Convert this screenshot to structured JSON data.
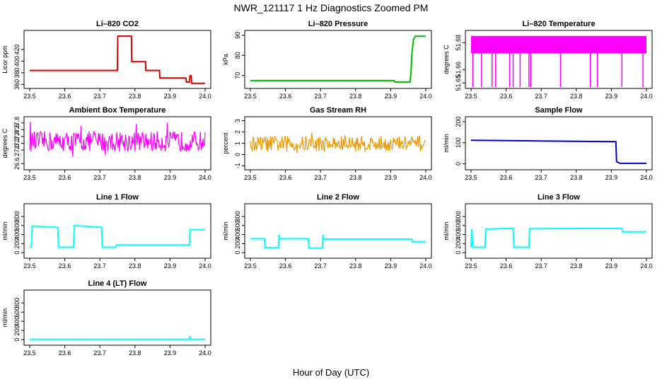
{
  "figure": {
    "title": "NWR_121117  1 Hz Diagnostics Zoomed PM",
    "xlabel": "Hour of Day (UTC)"
  },
  "chart_data": [
    {
      "type": "line",
      "title": "Li–820 CO2",
      "ylabel": "Licor ppm",
      "color": "#dd0000",
      "xlim": [
        23.5,
        24.0
      ],
      "ylim": [
        358,
        448
      ],
      "xticks": [
        "23.5",
        "23.6",
        "23.7",
        "23.8",
        "23.9",
        "24.0"
      ],
      "yticks": [
        [
          "360",
          360
        ],
        [
          "380",
          380
        ],
        [
          "400",
          400
        ],
        [
          "420",
          420
        ]
      ],
      "series": [
        {
          "x": [
            23.5,
            23.75,
            23.751,
            23.79,
            23.791,
            23.83,
            23.831,
            23.87,
            23.871,
            23.945,
            23.947,
            23.955,
            23.957,
            23.96,
            23.962,
            24.0
          ],
          "y": [
            384,
            384,
            443,
            443,
            399,
            399,
            384,
            384,
            371,
            371,
            364,
            364,
            375,
            375,
            362,
            362
          ]
        }
      ]
    },
    {
      "type": "line",
      "title": "Li–820 Pressure",
      "ylabel": "kPa",
      "color": "#00bb00",
      "xlim": [
        23.5,
        24.0
      ],
      "ylim": [
        65,
        91
      ],
      "xticks": [
        "23.5",
        "23.6",
        "23.7",
        "23.8",
        "23.9",
        "24.0"
      ],
      "yticks": [
        [
          "70",
          70
        ],
        [
          "80",
          80
        ],
        [
          "90",
          90
        ]
      ],
      "series": [
        {
          "x": [
            23.5,
            23.91,
            23.911,
            23.955,
            23.958,
            23.96,
            23.965,
            23.97,
            24.0
          ],
          "y": [
            67.5,
            67.5,
            66.8,
            66.8,
            72,
            80,
            88,
            89.5,
            89.5
          ]
        }
      ]
    },
    {
      "type": "line",
      "title": "Li–820 Temperature",
      "ylabel": "degrees C",
      "color": "#ff00ff",
      "xlim": [
        23.5,
        24.0
      ],
      "ylim": [
        51.648,
        51.687
      ],
      "xticks": [
        "23.5",
        "23.6",
        "23.7",
        "23.8",
        "23.9",
        "24.0"
      ],
      "yticks": [
        [
          "51.65",
          51.65
        ],
        [
          "51.66",
          51.66
        ],
        [
          "51.68",
          51.68
        ]
      ],
      "series": [
        {
          "band_low": 51.672,
          "band_high": 51.685,
          "dropouts": [
            23.505,
            23.53,
            23.56,
            23.57,
            23.61,
            23.62,
            23.64,
            23.665,
            23.67,
            23.755,
            23.84,
            23.86,
            23.93,
            23.99
          ]
        }
      ]
    },
    {
      "type": "line",
      "title": "Ambient Box Temperature",
      "ylabel": "degrees C",
      "color": "#ff00ff",
      "xlim": [
        23.5,
        24.0
      ],
      "ylim": [
        26.5,
        27.9
      ],
      "xticks": [
        "23.5",
        "23.6",
        "23.7",
        "23.8",
        "23.9",
        "24.0"
      ],
      "yticks": [
        [
          "26.6",
          26.6
        ],
        [
          "27.0",
          27.0
        ],
        [
          "27.2",
          27.2
        ],
        [
          "27.4",
          27.4
        ],
        [
          "27.6",
          27.6
        ],
        [
          "27.8",
          27.8
        ]
      ],
      "series": [
        {
          "mean": 27.25,
          "noise": 0.3
        }
      ]
    },
    {
      "type": "line",
      "title": "Gas Stream RH",
      "ylabel": "percent",
      "color": "#ee9900",
      "xlim": [
        23.5,
        24.0
      ],
      "ylim": [
        -1.1,
        3.1
      ],
      "xticks": [
        "23.5",
        "23.6",
        "23.7",
        "23.8",
        "23.9",
        "24.0"
      ],
      "yticks": [
        [
          "-1",
          -1
        ],
        [
          "0",
          0
        ],
        [
          "1",
          1
        ],
        [
          "2",
          2
        ],
        [
          "3",
          3
        ]
      ],
      "series": [
        {
          "mean": 0.95,
          "noise": 0.7
        }
      ]
    },
    {
      "type": "line",
      "title": "Sample Flow",
      "ylabel": "ml/min",
      "color": "#0000cc",
      "xlim": [
        23.5,
        24.0
      ],
      "ylim": [
        -15,
        210
      ],
      "xticks": [
        "23.5",
        "23.6",
        "23.7",
        "23.8",
        "23.9",
        "24.0"
      ],
      "yticks": [
        [
          "0",
          0
        ],
        [
          "100",
          100
        ],
        [
          "200",
          200
        ]
      ],
      "series": [
        {
          "x": [
            23.5,
            23.6,
            23.8,
            23.913,
            23.915,
            23.925,
            24.0
          ],
          "y": [
            112,
            110,
            107,
            105,
            10,
            2,
            2
          ]
        }
      ]
    },
    {
      "type": "line",
      "title": "Line 1 Flow",
      "ylabel": "ml/min",
      "color": "#00ffff",
      "xlim": [
        23.5,
        24.0
      ],
      "ylim": [
        -60,
        1020
      ],
      "xticks": [
        "23.5",
        "23.6",
        "23.7",
        "23.8",
        "23.9",
        "24.0"
      ],
      "yticks": [
        [
          "0",
          0
        ],
        [
          "200",
          200
        ],
        [
          "400",
          400
        ],
        [
          "600",
          600
        ],
        [
          "800",
          800
        ]
      ],
      "series": [
        {
          "x": [
            23.5,
            23.505,
            23.507,
            23.58,
            23.582,
            23.625,
            23.627,
            23.705,
            23.707,
            23.745,
            23.747,
            23.955,
            23.957,
            24.0
          ],
          "y": [
            130,
            130,
            590,
            560,
            120,
            120,
            600,
            560,
            120,
            120,
            170,
            170,
            510,
            510
          ]
        }
      ]
    },
    {
      "type": "line",
      "title": "Line 2 Flow",
      "ylabel": "ml/min",
      "color": "#00ffff",
      "xlim": [
        23.5,
        24.0
      ],
      "ylim": [
        -60,
        1020
      ],
      "xticks": [
        "23.5",
        "23.6",
        "23.7",
        "23.8",
        "23.9",
        "24.0"
      ],
      "yticks": [
        [
          "0",
          0
        ],
        [
          "200",
          200
        ],
        [
          "400",
          400
        ],
        [
          "600",
          600
        ],
        [
          "800",
          800
        ]
      ],
      "series": [
        {
          "x": [
            23.5,
            23.54,
            23.542,
            23.58,
            23.582,
            23.584,
            23.665,
            23.667,
            23.705,
            23.707,
            23.709,
            23.96,
            23.962,
            24.0
          ],
          "y": [
            310,
            310,
            110,
            110,
            400,
            310,
            310,
            100,
            100,
            400,
            300,
            300,
            240,
            240
          ]
        }
      ]
    },
    {
      "type": "line",
      "title": "Line 3 Flow",
      "ylabel": "ml/min",
      "color": "#00ffff",
      "xlim": [
        23.5,
        24.0
      ],
      "ylim": [
        -60,
        1020
      ],
      "xticks": [
        "23.5",
        "23.6",
        "23.7",
        "23.8",
        "23.9",
        "24.0"
      ],
      "yticks": [
        [
          "0",
          0
        ],
        [
          "200",
          200
        ],
        [
          "400",
          400
        ],
        [
          "600",
          600
        ],
        [
          "800",
          800
        ]
      ],
      "series": [
        {
          "x": [
            23.5,
            23.502,
            23.505,
            23.54,
            23.542,
            23.62,
            23.622,
            23.665,
            23.667,
            23.93,
            23.932,
            24.0
          ],
          "y": [
            120,
            520,
            120,
            120,
            520,
            540,
            120,
            120,
            530,
            540,
            460,
            460
          ]
        }
      ]
    },
    {
      "type": "line",
      "title": "Line 4 (LT) Flow",
      "ylabel": "ml/min",
      "color": "#00ffff",
      "xlim": [
        23.5,
        24.0
      ],
      "ylim": [
        -60,
        1020
      ],
      "xticks": [
        "23.5",
        "23.6",
        "23.7",
        "23.8",
        "23.9",
        "24.0"
      ],
      "yticks": [
        [
          "0",
          0
        ],
        [
          "200",
          200
        ],
        [
          "400",
          400
        ],
        [
          "600",
          600
        ],
        [
          "800",
          800
        ]
      ],
      "series": [
        {
          "x": [
            23.5,
            23.955,
            23.957,
            23.958,
            23.96,
            24.0
          ],
          "y": [
            5,
            5,
            80,
            20,
            5,
            5
          ]
        }
      ]
    }
  ]
}
